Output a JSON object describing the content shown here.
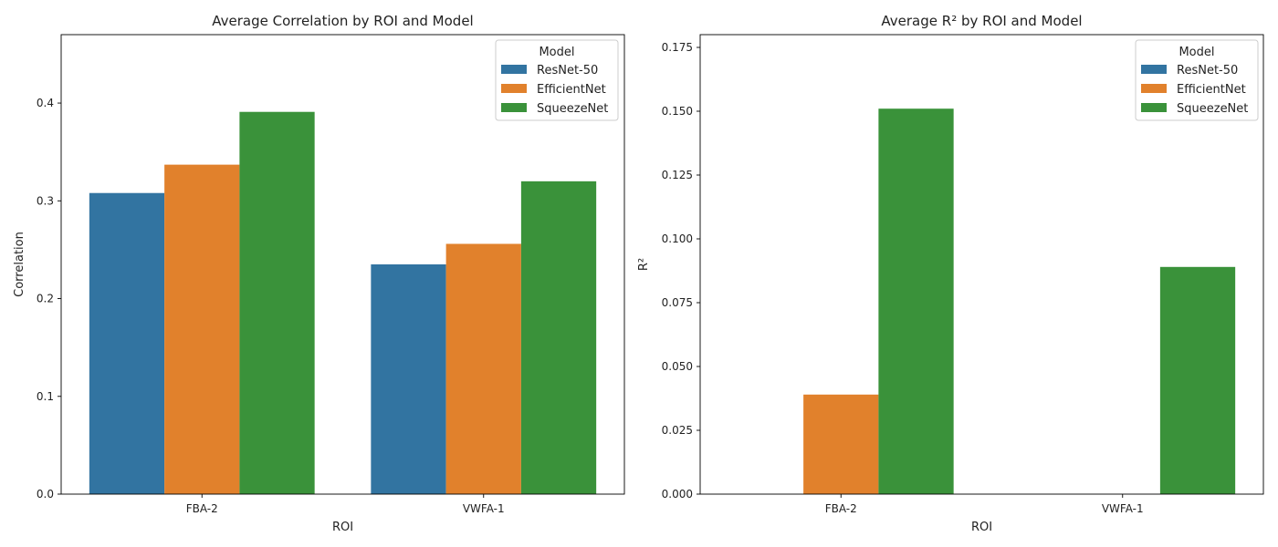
{
  "colors": {
    "ResNet-50": "#3274a1",
    "EfficientNet": "#e1812c",
    "SqueezeNet": "#3a923a"
  },
  "chart_data": [
    {
      "type": "bar",
      "title": "Average Correlation by ROI and Model",
      "xlabel": "ROI",
      "ylabel": "Correlation",
      "categories": [
        "FBA-2",
        "VWFA-1"
      ],
      "ylim": [
        0,
        0.47
      ],
      "yticks": [
        0.0,
        0.1,
        0.2,
        0.3,
        0.4
      ],
      "yticklabels": [
        "0.0",
        "0.1",
        "0.2",
        "0.3",
        "0.4"
      ],
      "legend_title": "Model",
      "legend_position": "top-right",
      "series": [
        {
          "name": "ResNet-50",
          "values": [
            0.308,
            0.235
          ]
        },
        {
          "name": "EfficientNet",
          "values": [
            0.337,
            0.256
          ]
        },
        {
          "name": "SqueezeNet",
          "values": [
            0.391,
            0.32
          ]
        }
      ]
    },
    {
      "type": "bar",
      "title": "Average R² by ROI and Model",
      "xlabel": "ROI",
      "ylabel": "R²",
      "categories": [
        "FBA-2",
        "VWFA-1"
      ],
      "ylim": [
        0,
        0.18
      ],
      "yticks": [
        0.0,
        0.025,
        0.05,
        0.075,
        0.1,
        0.125,
        0.15,
        0.175
      ],
      "yticklabels": [
        "0.000",
        "0.025",
        "0.050",
        "0.075",
        "0.100",
        "0.125",
        "0.150",
        "0.175"
      ],
      "legend_title": "Model",
      "legend_position": "top-right",
      "series": [
        {
          "name": "ResNet-50",
          "values": [
            0.0,
            0.0
          ]
        },
        {
          "name": "EfficientNet",
          "values": [
            0.039,
            0.0
          ]
        },
        {
          "name": "SqueezeNet",
          "values": [
            0.151,
            0.089
          ]
        }
      ]
    }
  ]
}
